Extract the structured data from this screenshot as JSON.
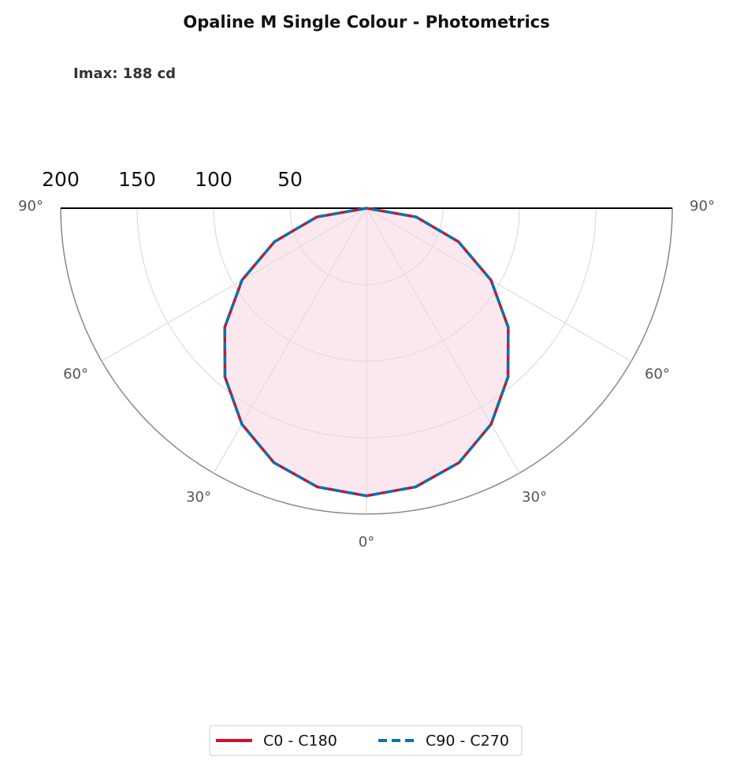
{
  "chart_data": {
    "type": "polar",
    "title": "Opaline M Single Colour - Photometrics",
    "annotation": "Imax: 188 cd",
    "theta": [
      -90,
      -80,
      -70,
      -60,
      -50,
      -40,
      -30,
      -20,
      -10,
      0,
      10,
      20,
      30,
      40,
      50,
      60,
      70,
      80,
      90
    ],
    "series": [
      {
        "name": "C0 - C180",
        "color": "#d0112b",
        "fill": "#fbe8ee",
        "dash": false,
        "values": [
          0,
          33,
          64,
          94,
          121,
          144,
          163,
          177,
          185,
          188,
          185,
          177,
          163,
          144,
          121,
          94,
          64,
          33,
          0
        ]
      },
      {
        "name": "C90 - C270",
        "color": "#0a72b0",
        "dash": true,
        "values": [
          0,
          33,
          64,
          94,
          121,
          144,
          163,
          177,
          185,
          188,
          185,
          177,
          163,
          144,
          121,
          94,
          64,
          33,
          0
        ]
      }
    ],
    "rlim": [
      0,
      200
    ],
    "rticks": [
      50,
      100,
      150,
      200
    ],
    "thetaticks": [
      {
        "value": -90,
        "label": "90°"
      },
      {
        "value": -60,
        "label": "60°"
      },
      {
        "value": -30,
        "label": "30°"
      },
      {
        "value": 0,
        "label": "0°"
      },
      {
        "value": 30,
        "label": "30°"
      },
      {
        "value": 60,
        "label": "60°"
      },
      {
        "value": 90,
        "label": "90°"
      }
    ],
    "grid": true,
    "legend": "bottom"
  }
}
